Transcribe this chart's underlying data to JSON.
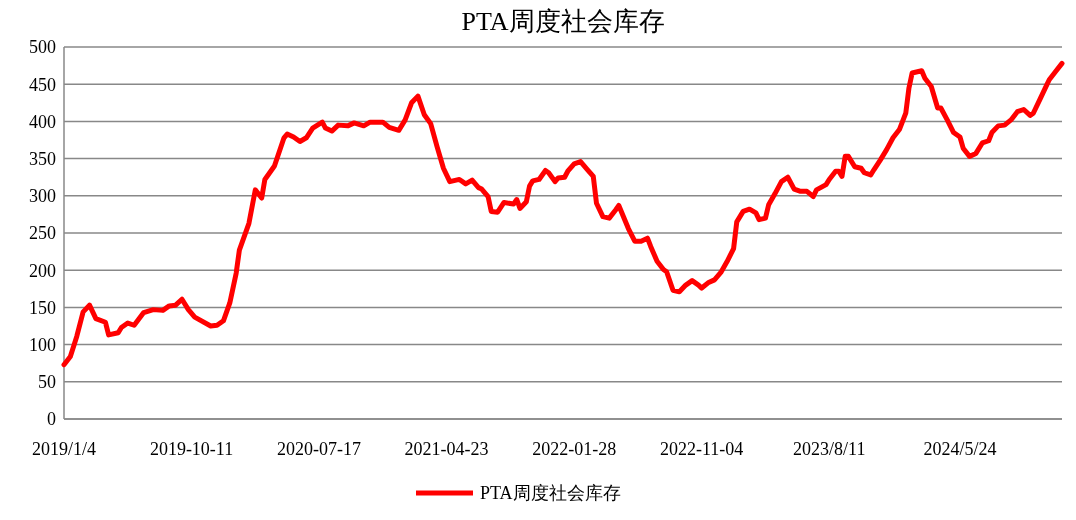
{
  "chart_data": {
    "type": "line",
    "title": "PTA周度社会库存",
    "x": [
      "2019-01-04",
      "2019-01-18",
      "2019-02-01",
      "2019-02-15",
      "2019-03-01",
      "2019-03-15",
      "2019-04-05",
      "2019-04-12",
      "2019-05-03",
      "2019-05-10",
      "2019-05-24",
      "2019-06-07",
      "2019-06-28",
      "2019-07-19",
      "2019-08-09",
      "2019-08-23",
      "2019-09-06",
      "2019-09-20",
      "2019-10-04",
      "2019-10-18",
      "2019-11-22",
      "2019-12-06",
      "2019-12-20",
      "2020-01-03",
      "2020-01-17",
      "2020-01-24",
      "2020-02-14",
      "2020-02-28",
      "2020-03-13",
      "2020-03-20",
      "2020-04-10",
      "2020-05-01",
      "2020-05-08",
      "2020-05-22",
      "2020-06-05",
      "2020-06-19",
      "2020-07-03",
      "2020-07-24",
      "2020-07-31",
      "2020-08-14",
      "2020-08-28",
      "2020-09-18",
      "2020-10-02",
      "2020-10-23",
      "2020-11-06",
      "2020-12-04",
      "2020-12-18",
      "2021-01-08",
      "2021-01-22",
      "2021-02-05",
      "2021-02-19",
      "2021-03-05",
      "2021-03-19",
      "2021-04-02",
      "2021-04-16",
      "2021-04-30",
      "2021-05-21",
      "2021-06-04",
      "2021-06-18",
      "2021-07-02",
      "2021-07-09",
      "2021-07-23",
      "2021-07-30",
      "2021-08-13",
      "2021-08-27",
      "2021-09-17",
      "2021-09-24",
      "2021-10-01",
      "2021-10-15",
      "2021-10-22",
      "2021-10-29",
      "2021-11-12",
      "2021-11-26",
      "2021-12-03",
      "2021-12-17",
      "2021-12-24",
      "2022-01-07",
      "2022-01-14",
      "2022-01-28",
      "2022-02-11",
      "2022-02-25",
      "2022-03-11",
      "2022-03-18",
      "2022-04-01",
      "2022-04-15",
      "2022-04-29",
      "2022-05-06",
      "2022-05-27",
      "2022-06-10",
      "2022-06-24",
      "2022-07-08",
      "2022-07-15",
      "2022-07-29",
      "2022-08-12",
      "2022-08-19",
      "2022-09-02",
      "2022-09-16",
      "2022-09-30",
      "2022-10-14",
      "2022-10-28",
      "2022-11-04",
      "2022-11-18",
      "2022-12-02",
      "2022-12-16",
      "2022-12-30",
      "2023-01-13",
      "2023-01-20",
      "2023-02-03",
      "2023-02-17",
      "2023-03-03",
      "2023-03-10",
      "2023-03-24",
      "2023-03-31",
      "2023-04-14",
      "2023-04-28",
      "2023-05-12",
      "2023-05-26",
      "2023-06-09",
      "2023-06-23",
      "2023-07-07",
      "2023-07-14",
      "2023-08-04",
      "2023-08-11",
      "2023-08-25",
      "2023-09-01",
      "2023-09-08",
      "2023-09-15",
      "2023-09-22",
      "2023-10-06",
      "2023-10-20",
      "2023-10-27",
      "2023-11-10",
      "2023-11-17",
      "2023-12-01",
      "2023-12-15",
      "2023-12-29",
      "2024-01-12",
      "2024-01-26",
      "2024-02-02",
      "2024-02-09",
      "2024-03-01",
      "2024-03-08",
      "2024-03-22",
      "2024-04-05",
      "2024-04-12",
      "2024-04-26",
      "2024-05-10",
      "2024-05-24",
      "2024-05-31",
      "2024-06-14",
      "2024-06-28",
      "2024-07-12",
      "2024-07-26",
      "2024-08-02",
      "2024-08-16",
      "2024-08-30",
      "2024-09-13",
      "2024-09-27",
      "2024-10-11",
      "2024-10-25",
      "2024-11-01",
      "2024-11-15",
      "2024-11-29",
      "2024-12-06",
      "2024-12-20",
      "2025-01-03"
    ],
    "series": [
      {
        "name": "PTA周度社会库存",
        "color": "#ff0000",
        "values": [
          73,
          84,
          111,
          144,
          153,
          135,
          130,
          113,
          116,
          123,
          129,
          126,
          143,
          147,
          146,
          152,
          153,
          161,
          147,
          137,
          125,
          126,
          132,
          156,
          196,
          227,
          263,
          308,
          297,
          322,
          340,
          378,
          383,
          379,
          373,
          378,
          391,
          399,
          391,
          387,
          395,
          394,
          398,
          394,
          399,
          399,
          392,
          388,
          402,
          425,
          434,
          409,
          397,
          366,
          337,
          319,
          322,
          316,
          321,
          311,
          309,
          299,
          279,
          278,
          291,
          289,
          295,
          283,
          292,
          313,
          320,
          322,
          334,
          331,
          319,
          324,
          325,
          333,
          343,
          346,
          336,
          326,
          290,
          272,
          270,
          281,
          287,
          256,
          239,
          239,
          243,
          232,
          212,
          201,
          198,
          173,
          171,
          180,
          186,
          180,
          176,
          183,
          187,
          197,
          212,
          229,
          265,
          279,
          282,
          277,
          268,
          270,
          288,
          303,
          319,
          325,
          309,
          306,
          306,
          299,
          308,
          315,
          322,
          333,
          333,
          326,
          353,
          353,
          339,
          337,
          331,
          328,
          335,
          348,
          362,
          378,
          389,
          411,
          445,
          465,
          468,
          458,
          447,
          418,
          418,
          402,
          385,
          379,
          364,
          353,
          357,
          371,
          374,
          385,
          394,
          395,
          402,
          413,
          416,
          408,
          411,
          429,
          447,
          456,
          467,
          478
        ]
      }
    ],
    "xlim": [
      "2019-01-04",
      "2025-01-03"
    ],
    "xticks": [
      {
        "value": "2019-01-04",
        "label": "2019/1/4"
      },
      {
        "value": "2019-10-11",
        "label": "2019-10-11"
      },
      {
        "value": "2020-07-17",
        "label": "2020-07-17"
      },
      {
        "value": "2021-04-23",
        "label": "2021-04-23"
      },
      {
        "value": "2022-01-28",
        "label": "2022-01-28"
      },
      {
        "value": "2022-11-04",
        "label": "2022-11-04"
      },
      {
        "value": "2023-08-11",
        "label": "2023/8/11"
      },
      {
        "value": "2024-05-24",
        "label": "2024/5/24"
      }
    ],
    "ylim": [
      0,
      500
    ],
    "yticks": [
      0,
      50,
      100,
      150,
      200,
      250,
      300,
      350,
      400,
      450,
      500
    ],
    "grid": "y",
    "legend": "bottom",
    "marker": "none",
    "line_style": "solid"
  }
}
